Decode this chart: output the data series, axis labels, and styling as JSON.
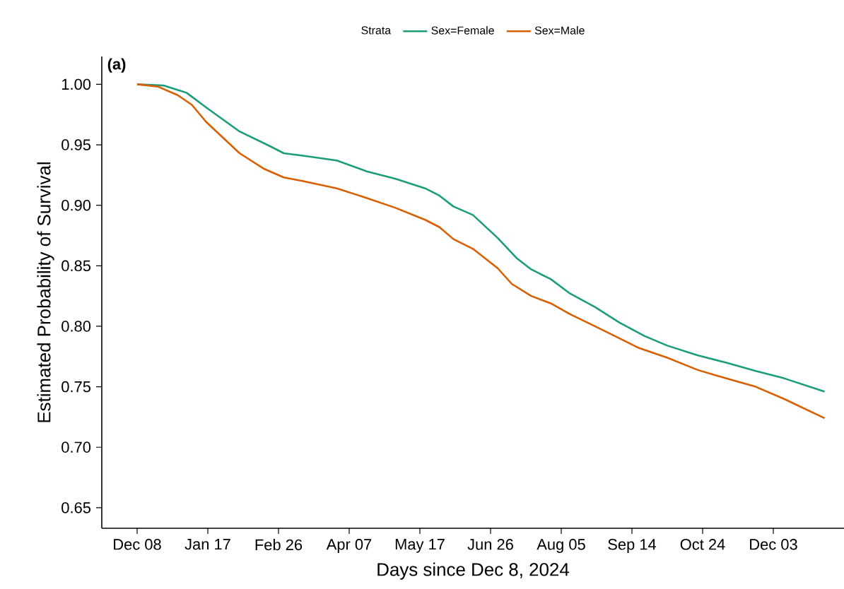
{
  "chart_data": {
    "type": "line",
    "xlabel": "Days since Dec 8, 2024",
    "ylabel": "Estimated Probability of Survival",
    "legend_title": "Strata",
    "legend": "top",
    "grid": false,
    "line_style": "solid",
    "marker": "none",
    "annotations": [
      "(a)"
    ],
    "xlim": [
      "2024-11-18",
      "2026-01-12"
    ],
    "ylim": [
      0.633,
      1.023
    ],
    "xticks": [
      {
        "value": "2024-12-08",
        "label": "Dec 08"
      },
      {
        "value": "2025-01-17",
        "label": "Jan 17"
      },
      {
        "value": "2025-02-26",
        "label": "Feb 26"
      },
      {
        "value": "2025-04-07",
        "label": "Apr 07"
      },
      {
        "value": "2025-05-17",
        "label": "May 17"
      },
      {
        "value": "2025-06-26",
        "label": "Jun 26"
      },
      {
        "value": "2025-08-05",
        "label": "Aug 05"
      },
      {
        "value": "2025-09-14",
        "label": "Sep 14"
      },
      {
        "value": "2025-10-24",
        "label": "Oct 24"
      },
      {
        "value": "2025-12-03",
        "label": "Dec 03"
      }
    ],
    "yticks": [
      {
        "value": 0.65,
        "label": "0.65"
      },
      {
        "value": 0.7,
        "label": "0.70"
      },
      {
        "value": 0.75,
        "label": "0.75"
      },
      {
        "value": 0.8,
        "label": "0.80"
      },
      {
        "value": 0.85,
        "label": "0.85"
      },
      {
        "value": 0.9,
        "label": "0.90"
      },
      {
        "value": 0.95,
        "label": "0.95"
      },
      {
        "value": 1.0,
        "label": "1.00"
      }
    ],
    "series": [
      {
        "name": "Sex=Female",
        "color": "#1b9e77",
        "x": [
          "2024-12-08",
          "2024-12-23",
          "2025-01-05",
          "2025-01-16",
          "2025-02-04",
          "2025-02-21",
          "2025-03-01",
          "2025-03-12",
          "2025-03-31",
          "2025-04-17",
          "2025-05-03",
          "2025-05-20",
          "2025-05-28",
          "2025-06-05",
          "2025-06-16",
          "2025-06-30",
          "2025-07-11",
          "2025-07-19",
          "2025-07-30",
          "2025-08-10",
          "2025-08-24",
          "2025-09-07",
          "2025-09-21",
          "2025-10-04",
          "2025-10-21",
          "2025-11-06",
          "2025-11-23",
          "2025-12-09",
          "2026-01-01"
        ],
        "values": [
          1.0,
          0.999,
          0.993,
          0.981,
          0.961,
          0.949,
          0.943,
          0.941,
          0.937,
          0.928,
          0.922,
          0.914,
          0.908,
          0.899,
          0.892,
          0.873,
          0.856,
          0.847,
          0.839,
          0.827,
          0.816,
          0.803,
          0.792,
          0.784,
          0.776,
          0.77,
          0.763,
          0.757,
          0.746
        ]
      },
      {
        "name": "Sex=Male",
        "color": "#d95f02",
        "x": [
          "2024-12-08",
          "2024-12-20",
          "2024-12-31",
          "2025-01-08",
          "2025-01-16",
          "2025-02-04",
          "2025-02-18",
          "2025-03-01",
          "2025-03-12",
          "2025-03-31",
          "2025-04-17",
          "2025-05-03",
          "2025-05-20",
          "2025-05-28",
          "2025-06-05",
          "2025-06-16",
          "2025-06-30",
          "2025-07-08",
          "2025-07-19",
          "2025-07-30",
          "2025-08-10",
          "2025-08-24",
          "2025-09-07",
          "2025-09-18",
          "2025-10-04",
          "2025-10-21",
          "2025-11-06",
          "2025-11-23",
          "2025-12-09",
          "2026-01-01"
        ],
        "values": [
          1.0,
          0.998,
          0.991,
          0.983,
          0.969,
          0.943,
          0.93,
          0.923,
          0.92,
          0.914,
          0.906,
          0.898,
          0.888,
          0.882,
          0.872,
          0.864,
          0.848,
          0.835,
          0.825,
          0.819,
          0.81,
          0.8,
          0.79,
          0.782,
          0.774,
          0.764,
          0.757,
          0.75,
          0.74,
          0.724
        ]
      }
    ]
  }
}
